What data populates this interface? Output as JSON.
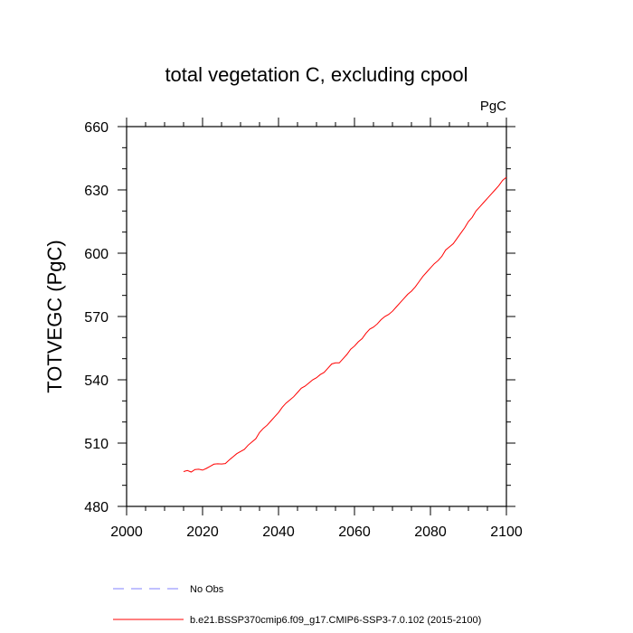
{
  "chart_data": {
    "type": "line",
    "title": "total vegetation C, excluding cpool",
    "units_label": "PgC",
    "ylabel": "TOTVEGC  (PgC)",
    "xlim": [
      2000,
      2100
    ],
    "ylim": [
      480,
      660
    ],
    "x_ticks": [
      2000,
      2020,
      2040,
      2060,
      2080,
      2100
    ],
    "y_ticks": [
      480,
      510,
      540,
      570,
      600,
      630,
      660
    ],
    "x_minor_step": 5,
    "y_minor_step": 10,
    "grid": false,
    "legend_placement": "bottom",
    "series": [
      {
        "name": "No Obs",
        "color": "#8080ff",
        "dash": true,
        "x": [],
        "y": []
      },
      {
        "name": "b.e21.BSSP370cmip6.f09_g17.CMIP6-SSP3-7.0.102 (2015-2100)",
        "color": "#ff0000",
        "dash": false,
        "x": [
          2015,
          2016,
          2017,
          2018,
          2019,
          2020,
          2021,
          2022,
          2023,
          2024,
          2025,
          2026,
          2027,
          2028,
          2029,
          2030,
          2031,
          2032,
          2033,
          2034,
          2035,
          2036,
          2037,
          2038,
          2039,
          2040,
          2041,
          2042,
          2043,
          2044,
          2045,
          2046,
          2047,
          2048,
          2049,
          2050,
          2051,
          2052,
          2053,
          2054,
          2055,
          2056,
          2057,
          2058,
          2059,
          2060,
          2061,
          2062,
          2063,
          2064,
          2065,
          2066,
          2067,
          2068,
          2069,
          2070,
          2071,
          2072,
          2073,
          2074,
          2075,
          2076,
          2077,
          2078,
          2079,
          2080,
          2081,
          2082,
          2083,
          2084,
          2085,
          2086,
          2087,
          2088,
          2089,
          2090,
          2091,
          2092,
          2093,
          2094,
          2095,
          2096,
          2097,
          2098,
          2099,
          2100
        ],
        "y": [
          496.5,
          497.0,
          496.3,
          497.5,
          497.6,
          497.2,
          498.0,
          499.0,
          500.0,
          500.2,
          500.1,
          500.3,
          502.0,
          503.5,
          505.0,
          506.0,
          507.0,
          509.0,
          510.5,
          512.0,
          515.0,
          517.0,
          518.5,
          520.5,
          522.5,
          524.5,
          527.0,
          529.0,
          530.5,
          532.0,
          534.0,
          536.0,
          537.0,
          538.5,
          540.0,
          541.0,
          542.5,
          543.5,
          545.5,
          547.5,
          548.0,
          548.0,
          550.0,
          552.0,
          554.5,
          556.0,
          558.0,
          559.5,
          562.0,
          564.0,
          565.0,
          566.5,
          568.5,
          570.0,
          571.0,
          572.5,
          574.5,
          576.5,
          578.5,
          580.5,
          582.0,
          584.0,
          586.5,
          589.0,
          591.0,
          593.0,
          595.0,
          596.5,
          598.5,
          601.5,
          603.0,
          604.5,
          607.0,
          609.5,
          612.0,
          615.0,
          617.0,
          620.0,
          622.0,
          624.0,
          626.0,
          628.0,
          630.0,
          632.0,
          634.5,
          636.0
        ]
      }
    ]
  }
}
